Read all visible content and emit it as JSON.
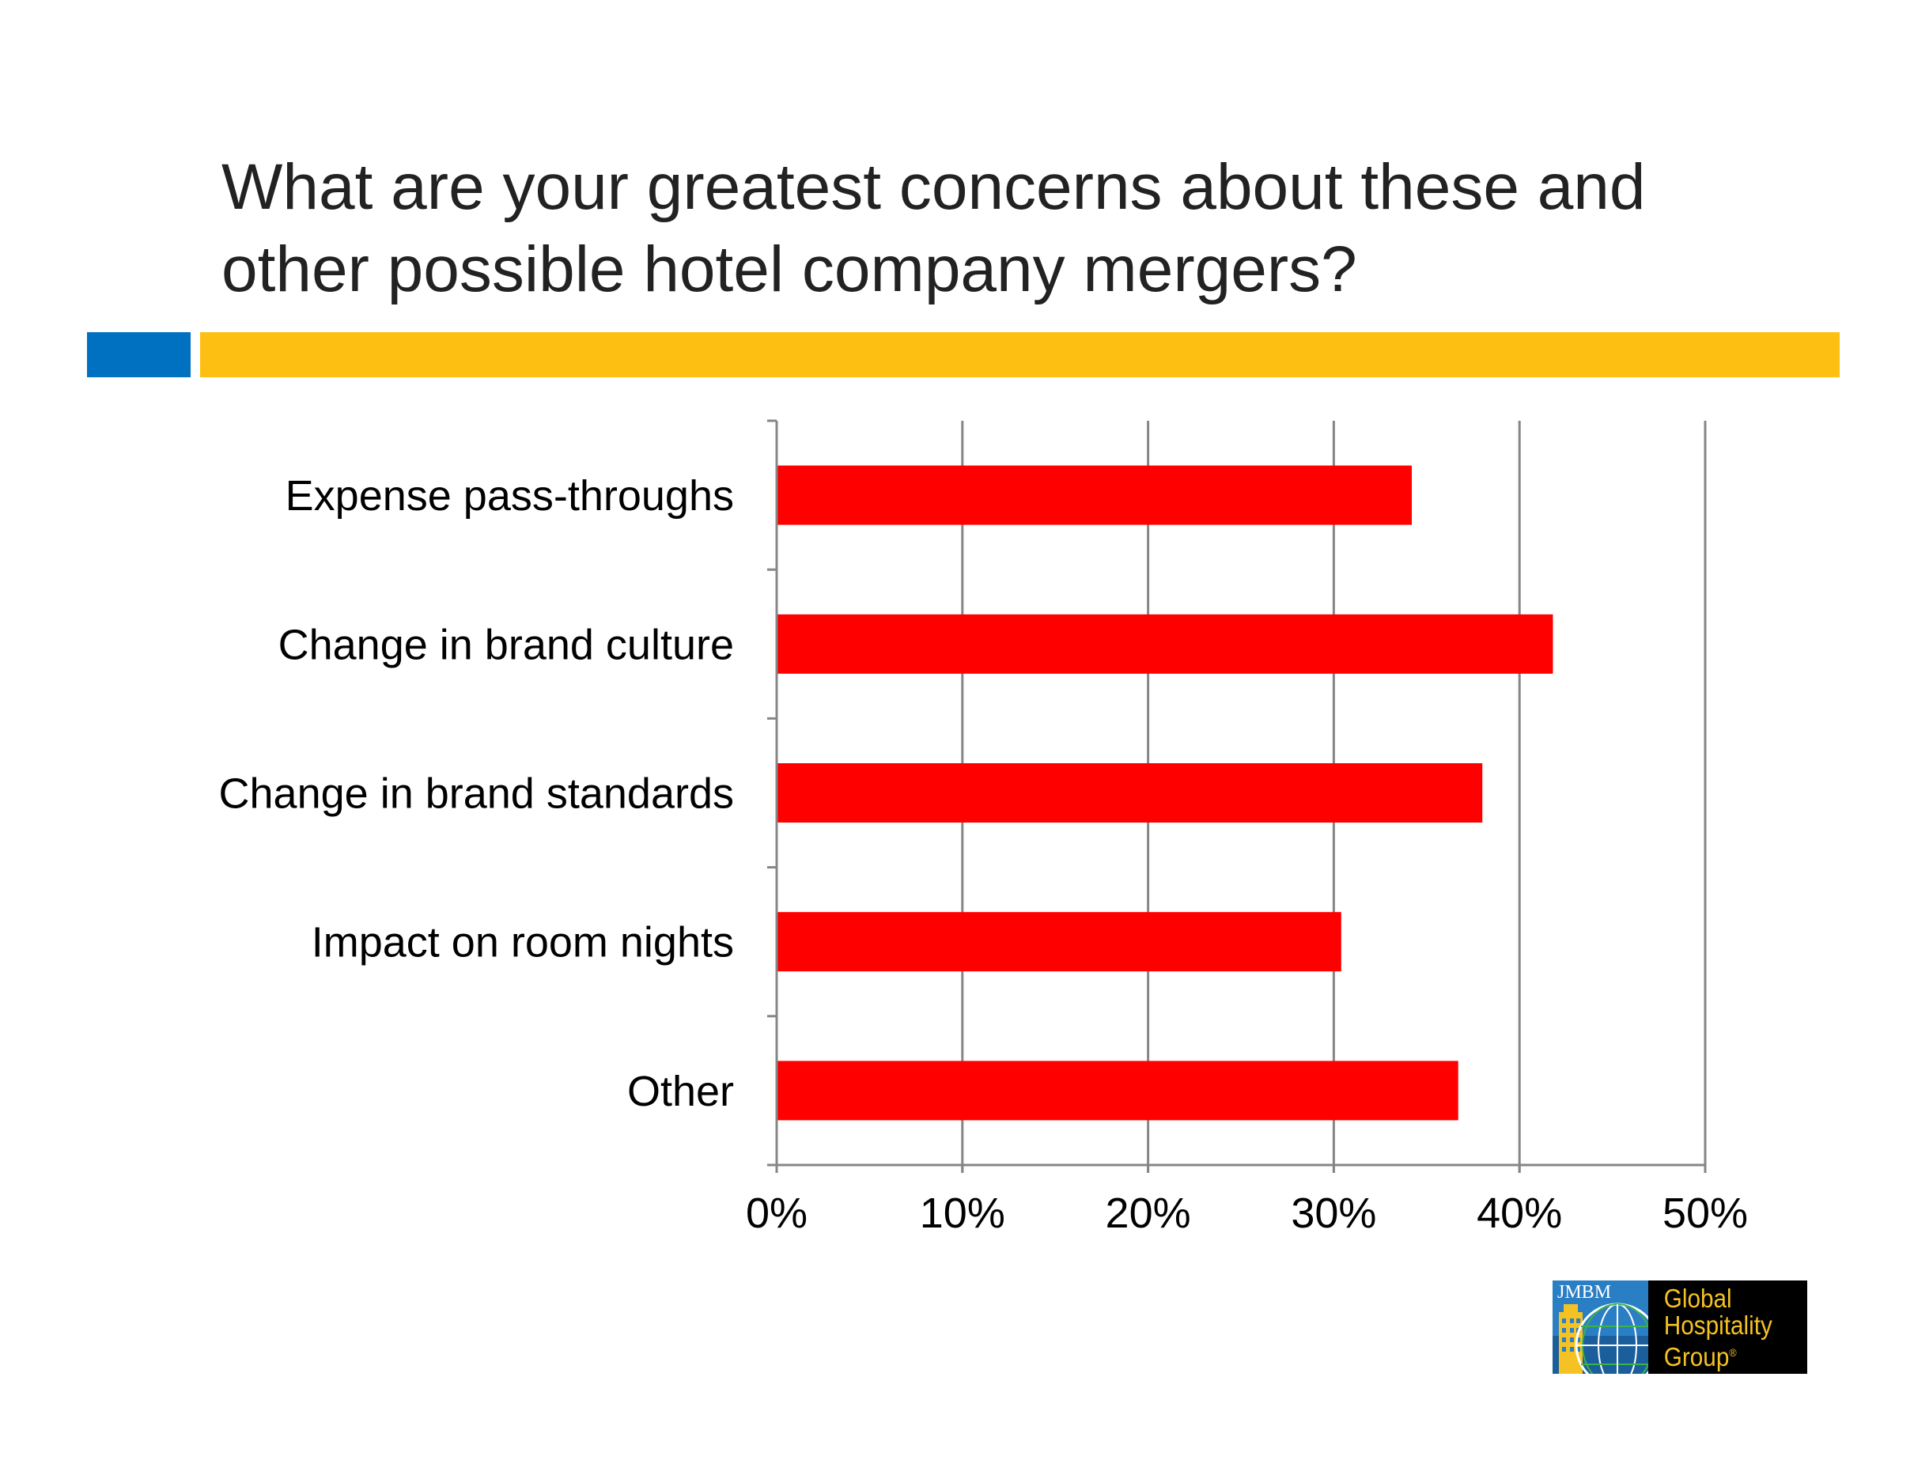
{
  "title": "What are your greatest concerns about these and other possible hotel company mergers?",
  "colors": {
    "accent_blue": "#0070c0",
    "accent_yellow": "#fdc012",
    "bar": "#ff0000",
    "grid": "#868686"
  },
  "chart_data": {
    "type": "bar",
    "orientation": "horizontal",
    "categories": [
      "Expense pass-throughs",
      "Change in brand culture",
      "Change in brand standards",
      "Impact on room nights",
      "Other"
    ],
    "values": [
      34.2,
      41.8,
      38.0,
      30.4,
      36.7
    ],
    "xlim": [
      0,
      50
    ],
    "x_ticks": [
      "0%",
      "10%",
      "20%",
      "30%",
      "40%",
      "50%"
    ],
    "grid": "vertical",
    "title": "",
    "xlabel": "",
    "ylabel": ""
  },
  "logo": {
    "mark_label": "JMBM",
    "lines": [
      "Global",
      "Hospitality",
      "Group"
    ],
    "registered": "®"
  }
}
